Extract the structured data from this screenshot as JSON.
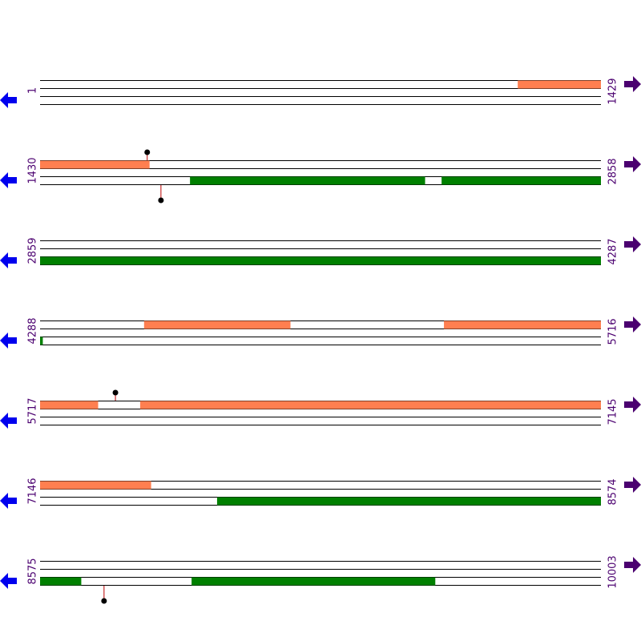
{
  "forward_color": "#ff7f50",
  "reverse_color": "#008000",
  "rows": [
    {
      "start": 1,
      "end": 1429,
      "forward": [
        [
          1218,
          1429
        ]
      ],
      "reverse": [],
      "forward_sites": [],
      "reverse_sites": []
    },
    {
      "start": 1430,
      "end": 2858,
      "forward": [
        [
          1430,
          1708
        ]
      ],
      "reverse": [
        [
          1812,
          2410
        ],
        [
          2453,
          2858
        ]
      ],
      "forward_sites": [
        1703
      ],
      "reverse_sites": [
        1738
      ]
    },
    {
      "start": 2859,
      "end": 4287,
      "forward": [],
      "reverse": [
        [
          2859,
          4287
        ]
      ],
      "forward_sites": [],
      "reverse_sites": []
    },
    {
      "start": 4288,
      "end": 5716,
      "forward": [
        [
          4553,
          4925
        ],
        [
          5317,
          5716
        ]
      ],
      "reverse": [
        [
          4288,
          4294
        ]
      ],
      "forward_sites": [],
      "reverse_sites": []
    },
    {
      "start": 5717,
      "end": 7145,
      "forward": [
        [
          5717,
          5864
        ],
        [
          5972,
          7145
        ]
      ],
      "reverse": [],
      "forward_sites": [
        5909
      ],
      "reverse_sites": []
    },
    {
      "start": 7146,
      "end": 8574,
      "forward": [
        [
          7146,
          7428
        ]
      ],
      "reverse": [
        [
          7597,
          8574
        ]
      ],
      "forward_sites": [],
      "reverse_sites": []
    },
    {
      "start": 8575,
      "end": 10003,
      "forward": [],
      "reverse": [
        [
          8575,
          8679
        ],
        [
          8961,
          9581
        ]
      ],
      "forward_sites": [],
      "reverse_sites": [
        8738
      ]
    }
  ]
}
